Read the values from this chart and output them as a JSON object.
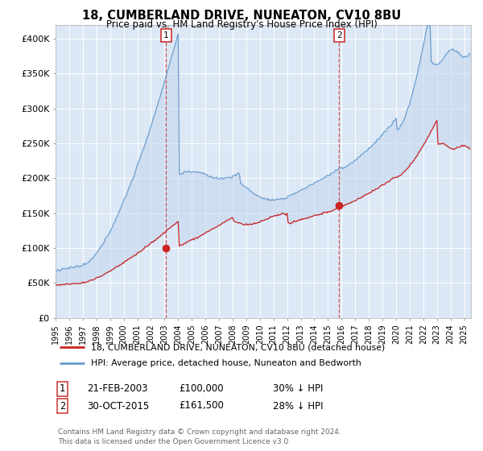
{
  "title": "18, CUMBERLAND DRIVE, NUNEATON, CV10 8BU",
  "subtitle": "Price paid vs. HM Land Registry's House Price Index (HPI)",
  "ylabel_ticks": [
    "£0",
    "£50K",
    "£100K",
    "£150K",
    "£200K",
    "£250K",
    "£300K",
    "£350K",
    "£400K"
  ],
  "ylim": [
    0,
    420000
  ],
  "xlim_start": 1995.0,
  "xlim_end": 2025.5,
  "plot_bg_color": "#dce8f5",
  "grid_color": "#ffffff",
  "sale1_x": 2003.12,
  "sale1_y": 100000,
  "sale2_x": 2015.83,
  "sale2_y": 161500,
  "legend_line1": "18, CUMBERLAND DRIVE, NUNEATON, CV10 8BU (detached house)",
  "legend_line2": "HPI: Average price, detached house, Nuneaton and Bedworth",
  "annotation1_label": "1",
  "annotation1_date": "21-FEB-2003",
  "annotation1_price": "£100,000",
  "annotation1_hpi": "30% ↓ HPI",
  "annotation2_label": "2",
  "annotation2_date": "30-OCT-2015",
  "annotation2_price": "£161,500",
  "annotation2_hpi": "28% ↓ HPI",
  "footer": "Contains HM Land Registry data © Crown copyright and database right 2024.\nThis data is licensed under the Open Government Licence v3.0.",
  "hpi_color": "#6699cc",
  "hpi_fill_color": "#c5d8ee",
  "price_color": "#cc2222",
  "sale_marker_color": "#cc2222"
}
